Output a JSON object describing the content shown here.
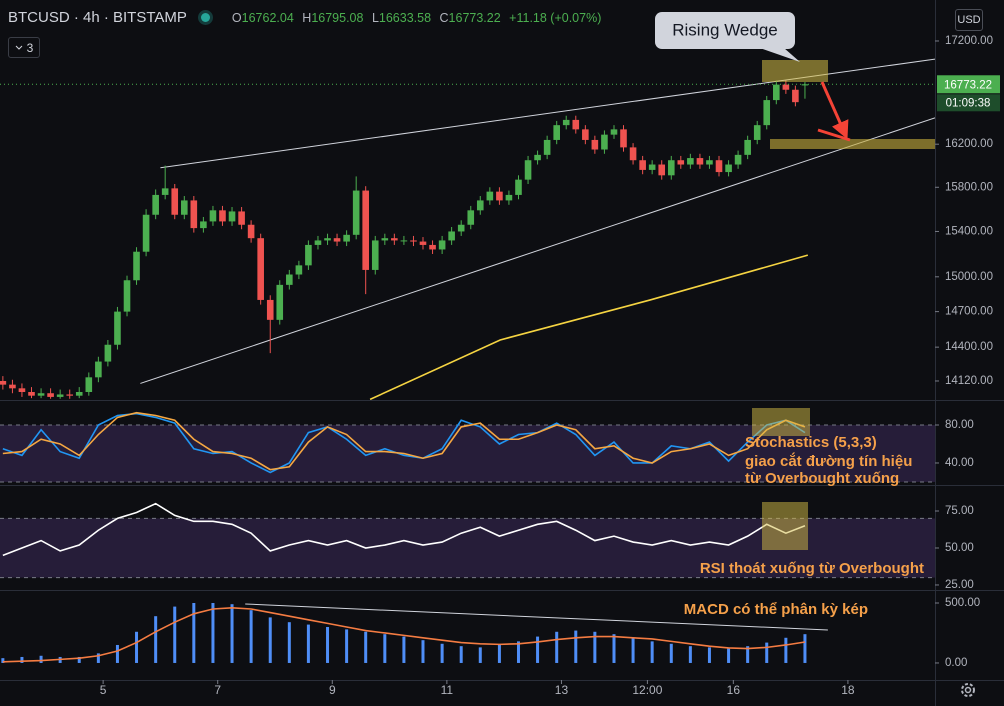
{
  "chart_data": [
    {
      "type": "candlestick",
      "title": "BTCUSD · 4h · BITSTAMP",
      "ohlc_labels": [
        "O",
        "H",
        "L",
        "C"
      ],
      "change": "+11.18 (+0.07%)",
      "indicator_count": 3,
      "currency": "USD",
      "countdown": "01:09:38",
      "annotation": "Rising Wedge",
      "log": true,
      "up_color": "#4caf50",
      "down_color": "#ef5350",
      "xlim": [
        3.2,
        19.52
      ],
      "xticks": [
        5,
        7,
        9,
        11,
        13,
        {
          "value": 14.5,
          "label": "12:00"
        },
        16,
        18
      ],
      "ylim": [
        13965,
        17614
      ],
      "yticks": [
        {
          "value": 17200,
          "label": "17200.00"
        },
        {
          "value": 16200,
          "label": "16200.00"
        },
        {
          "value": 15800,
          "label": "15800.00"
        },
        {
          "value": 15400,
          "label": "15400.00"
        },
        {
          "value": 15000,
          "label": "15000.00"
        },
        {
          "value": 14700,
          "label": "14700.00"
        },
        {
          "value": 14400,
          "label": "14400.00"
        },
        {
          "value": 14120,
          "label": "14120.00"
        }
      ],
      "x": [
        3.25,
        3.417,
        3.583,
        3.75,
        3.917,
        4.083,
        4.25,
        4.417,
        4.583,
        4.75,
        4.917,
        5.083,
        5.25,
        5.417,
        5.583,
        5.75,
        5.917,
        6.083,
        6.25,
        6.417,
        6.583,
        6.75,
        6.917,
        7.083,
        7.25,
        7.417,
        7.583,
        7.75,
        7.917,
        8.083,
        8.25,
        8.417,
        8.583,
        8.75,
        8.917,
        9.083,
        9.25,
        9.417,
        9.583,
        9.75,
        9.917,
        10.083,
        10.25,
        10.417,
        10.583,
        10.75,
        10.917,
        11.083,
        11.25,
        11.417,
        11.583,
        11.75,
        11.917,
        12.083,
        12.25,
        12.417,
        12.583,
        12.75,
        12.917,
        13.083,
        13.25,
        13.417,
        13.583,
        13.75,
        13.917,
        14.083,
        14.25,
        14.417,
        14.583,
        14.75,
        14.917,
        15.083,
        15.25,
        15.417,
        15.583,
        15.75,
        15.917,
        16.083,
        16.25,
        16.417,
        16.583,
        16.75,
        16.917,
        17.083,
        17.25
      ],
      "open": [
        14120,
        14090,
        14060,
        14030,
        14000,
        14020,
        13990,
        14010,
        14000,
        14030,
        14150,
        14280,
        14420,
        14700,
        14970,
        15220,
        15550,
        15730,
        15790,
        15550,
        15680,
        15430,
        15490,
        15590,
        15490,
        15580,
        15460,
        15340,
        14800,
        14630,
        14930,
        15020,
        15100,
        15280,
        15320,
        15340,
        15310,
        15370,
        15770,
        15060,
        15320,
        15340,
        15320,
        15320,
        15310,
        15280,
        15240,
        15320,
        15400,
        15460,
        15590,
        15680,
        15760,
        15680,
        15730,
        15870,
        16050,
        16100,
        16240,
        16380,
        16430,
        16340,
        16240,
        16150,
        16290,
        16340,
        16170,
        16050,
        15960,
        16010,
        15910,
        16050,
        16010,
        16070,
        16010,
        16050,
        15940,
        16010,
        16100,
        16240,
        16380,
        16620,
        16770,
        16720,
        16762.04
      ],
      "high": [
        14160,
        14130,
        14100,
        14070,
        14060,
        14060,
        14050,
        14050,
        14070,
        14190,
        14320,
        14460,
        14740,
        15010,
        15260,
        15600,
        15780,
        16000,
        15830,
        15720,
        15720,
        15530,
        15630,
        15630,
        15620,
        15620,
        15500,
        15380,
        14840,
        14970,
        15060,
        15140,
        15320,
        15360,
        15380,
        15380,
        15410,
        15900,
        15810,
        15360,
        15380,
        15380,
        15360,
        15360,
        15350,
        15320,
        15360,
        15440,
        15500,
        15630,
        15720,
        15800,
        15800,
        15770,
        15910,
        16090,
        16140,
        16280,
        16420,
        16470,
        16470,
        16380,
        16280,
        16330,
        16380,
        16380,
        16210,
        16090,
        16050,
        16050,
        16090,
        16090,
        16110,
        16110,
        16090,
        16090,
        16050,
        16140,
        16280,
        16420,
        16660,
        16810,
        16810,
        16760,
        16795.08
      ],
      "low": [
        14050,
        14020,
        13990,
        13980,
        13980,
        13975,
        13975,
        13975,
        13980,
        14000,
        14110,
        14240,
        14380,
        14660,
        14930,
        15180,
        15510,
        15690,
        15510,
        15510,
        15390,
        15390,
        15450,
        15450,
        15450,
        15420,
        15300,
        14760,
        14350,
        14590,
        14890,
        14980,
        15060,
        15240,
        15280,
        15270,
        15270,
        15330,
        14850,
        15020,
        15280,
        15280,
        15280,
        15270,
        15240,
        15200,
        15200,
        15280,
        15360,
        15420,
        15550,
        15640,
        15640,
        15640,
        15690,
        15830,
        16010,
        16060,
        16200,
        16340,
        16300,
        16200,
        16110,
        16110,
        16250,
        16130,
        16010,
        15920,
        15920,
        15870,
        15870,
        15970,
        15970,
        15970,
        15970,
        15900,
        15900,
        15970,
        16060,
        16200,
        16340,
        16580,
        16680,
        16560,
        16633.58
      ],
      "close": [
        14090,
        14060,
        14030,
        14000,
        14020,
        13990,
        14010,
        14000,
        14030,
        14150,
        14280,
        14420,
        14700,
        14970,
        15220,
        15550,
        15730,
        15790,
        15550,
        15680,
        15430,
        15490,
        15590,
        15490,
        15580,
        15460,
        15340,
        14800,
        14630,
        14930,
        15020,
        15100,
        15280,
        15320,
        15340,
        15310,
        15370,
        15770,
        15060,
        15320,
        15340,
        15320,
        15320,
        15310,
        15280,
        15240,
        15320,
        15400,
        15460,
        15590,
        15680,
        15760,
        15680,
        15730,
        15870,
        16050,
        16100,
        16240,
        16380,
        16430,
        16340,
        16240,
        16150,
        16290,
        16340,
        16170,
        16050,
        15960,
        16010,
        15910,
        16050,
        16010,
        16070,
        16010,
        16050,
        15940,
        16010,
        16100,
        16240,
        16380,
        16620,
        16770,
        16720,
        16600,
        16773.22
      ],
      "series": [
        {
          "type": "line",
          "color": "#f5d442",
          "x": [
            9.66,
            11.93,
            14.55,
            17.3
          ],
          "values": [
            13970,
            14460,
            14800,
            15190
          ]
        }
      ],
      "trendlines": [
        {
          "color": "#d1d4dc",
          "x": [
            6.0,
            19.52
          ],
          "y": [
            15980,
            17020
          ]
        },
        {
          "color": "#d1d4dc",
          "x": [
            5.65,
            19.52
          ],
          "y": [
            14100,
            16450
          ]
        }
      ]
    },
    {
      "type": "line",
      "annotation": [
        "Stochastics (5,3,3)",
        "giao cắt đường tín hiệu",
        "từ Overbought xuống"
      ],
      "ylim": [
        16.8,
        105.3
      ],
      "yticks": [
        {
          "value": 80,
          "label": "80.00"
        },
        {
          "value": 40,
          "label": "40.00"
        }
      ],
      "bands": [
        20,
        80
      ],
      "x": [
        3.25,
        3.583,
        3.917,
        4.25,
        4.583,
        4.917,
        5.25,
        5.583,
        5.917,
        6.25,
        6.583,
        6.917,
        7.25,
        7.583,
        7.917,
        8.25,
        8.583,
        8.917,
        9.25,
        9.583,
        9.917,
        10.25,
        10.583,
        10.917,
        11.25,
        11.583,
        11.917,
        12.25,
        12.583,
        12.917,
        13.25,
        13.583,
        13.917,
        14.25,
        14.583,
        14.917,
        15.25,
        15.583,
        15.917,
        16.25,
        16.583,
        16.917,
        17.25
      ],
      "series": [
        {
          "type": "line",
          "color": "#2196f3",
          "values": [
            55,
            48,
            75,
            52,
            45,
            80,
            90,
            92,
            88,
            82,
            55,
            50,
            52,
            40,
            30,
            40,
            72,
            78,
            65,
            48,
            55,
            48,
            45,
            55,
            85,
            78,
            60,
            70,
            72,
            82,
            70,
            48,
            62,
            40,
            40,
            58,
            55,
            62,
            42,
            62,
            80,
            85,
            72
          ]
        },
        {
          "type": "line",
          "color": "#f5a742",
          "values": [
            50,
            52,
            65,
            60,
            48,
            70,
            88,
            93,
            90,
            85,
            65,
            52,
            50,
            45,
            33,
            36,
            62,
            78,
            70,
            52,
            52,
            50,
            45,
            50,
            78,
            82,
            65,
            65,
            72,
            80,
            75,
            55,
            58,
            45,
            40,
            52,
            55,
            60,
            48,
            55,
            75,
            85,
            78
          ]
        }
      ]
    },
    {
      "type": "line",
      "annotation": "RSI thoát xuống từ Overbought",
      "ylim": [
        21.6,
        91.9
      ],
      "yticks": [
        {
          "value": 75,
          "label": "75.00"
        },
        {
          "value": 50,
          "label": "50.00"
        },
        {
          "value": 25,
          "label": "25.00"
        }
      ],
      "bands": [
        30,
        70
      ],
      "x": [
        3.25,
        3.583,
        3.917,
        4.25,
        4.583,
        4.917,
        5.25,
        5.583,
        5.917,
        6.25,
        6.583,
        6.917,
        7.25,
        7.583,
        7.917,
        8.25,
        8.583,
        8.917,
        9.25,
        9.583,
        9.917,
        10.25,
        10.583,
        10.917,
        11.25,
        11.583,
        11.917,
        12.25,
        12.583,
        12.917,
        13.25,
        13.583,
        13.917,
        14.25,
        14.583,
        14.917,
        15.25,
        15.583,
        15.917,
        16.25,
        16.583,
        16.917,
        17.25
      ],
      "series": [
        {
          "type": "line",
          "color": "#ffffff",
          "values": [
            45,
            50,
            55,
            48,
            52,
            62,
            70,
            74,
            80,
            72,
            68,
            68,
            66,
            60,
            48,
            52,
            55,
            52,
            55,
            50,
            52,
            55,
            52,
            54,
            60,
            64,
            58,
            62,
            66,
            68,
            62,
            55,
            58,
            54,
            52,
            55,
            52,
            54,
            52,
            58,
            66,
            60,
            65
          ]
        }
      ]
    },
    {
      "type": "bar",
      "annotation": "MACD có thể phân kỳ kép",
      "ylim": [
        -142,
        600
      ],
      "yticks": [
        {
          "value": 500,
          "label": "500.00"
        },
        {
          "value": 0,
          "label": "0.00"
        }
      ],
      "x": [
        3.25,
        3.583,
        3.917,
        4.25,
        4.583,
        4.917,
        5.25,
        5.583,
        5.917,
        6.25,
        6.583,
        6.917,
        7.25,
        7.583,
        7.917,
        8.25,
        8.583,
        8.917,
        9.25,
        9.583,
        9.917,
        10.25,
        10.583,
        10.917,
        11.25,
        11.583,
        11.917,
        12.25,
        12.583,
        12.917,
        13.25,
        13.583,
        13.917,
        14.25,
        14.583,
        14.917,
        15.25,
        15.583,
        15.917,
        16.25,
        16.583,
        16.917,
        17.25
      ],
      "series": [
        {
          "type": "bar",
          "color": "#4f8ef7",
          "values": [
            40,
            50,
            60,
            50,
            50,
            80,
            150,
            260,
            390,
            470,
            500,
            500,
            490,
            440,
            380,
            340,
            320,
            300,
            280,
            260,
            240,
            220,
            190,
            160,
            140,
            130,
            150,
            180,
            220,
            260,
            270,
            260,
            240,
            210,
            180,
            160,
            140,
            130,
            120,
            140,
            170,
            210,
            240
          ]
        },
        {
          "type": "line",
          "color": "#f57c42",
          "values": [
            10,
            15,
            20,
            30,
            40,
            60,
            100,
            170,
            260,
            340,
            410,
            450,
            460,
            450,
            420,
            390,
            360,
            330,
            300,
            270,
            250,
            230,
            210,
            190,
            170,
            160,
            155,
            160,
            175,
            195,
            210,
            220,
            220,
            210,
            200,
            180,
            160,
            140,
            125,
            120,
            130,
            150,
            175
          ]
        }
      ],
      "trendlines": [
        {
          "color": "#d1d4dc",
          "x": [
            7.48,
            17.65
          ],
          "y": [
            492,
            275
          ]
        }
      ]
    }
  ]
}
